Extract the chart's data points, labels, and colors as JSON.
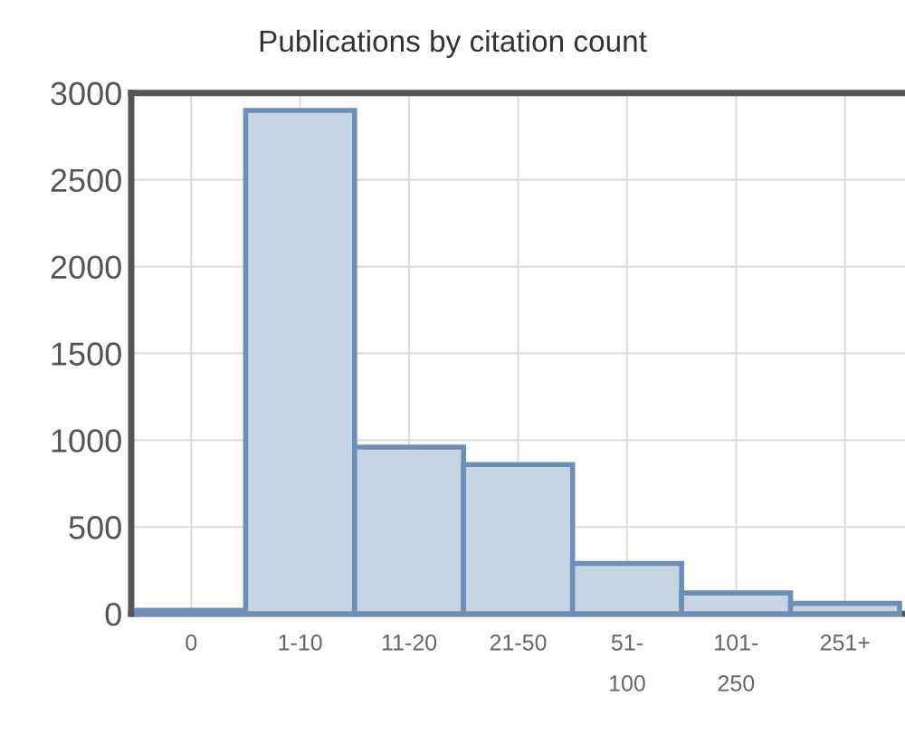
{
  "chart_data": {
    "type": "bar",
    "title": "Publications by citation count",
    "categories": [
      "0",
      "1-10",
      "11-20",
      "21-50",
      "51-\n100",
      "101-\n250",
      "251+"
    ],
    "values": [
      20,
      2900,
      960,
      860,
      290,
      120,
      60
    ],
    "color": "#c5d5e4",
    "ylim": [
      0,
      3000
    ],
    "yticks": [
      0,
      500,
      1000,
      1500,
      2000,
      2500,
      3000
    ],
    "grid": true
  }
}
